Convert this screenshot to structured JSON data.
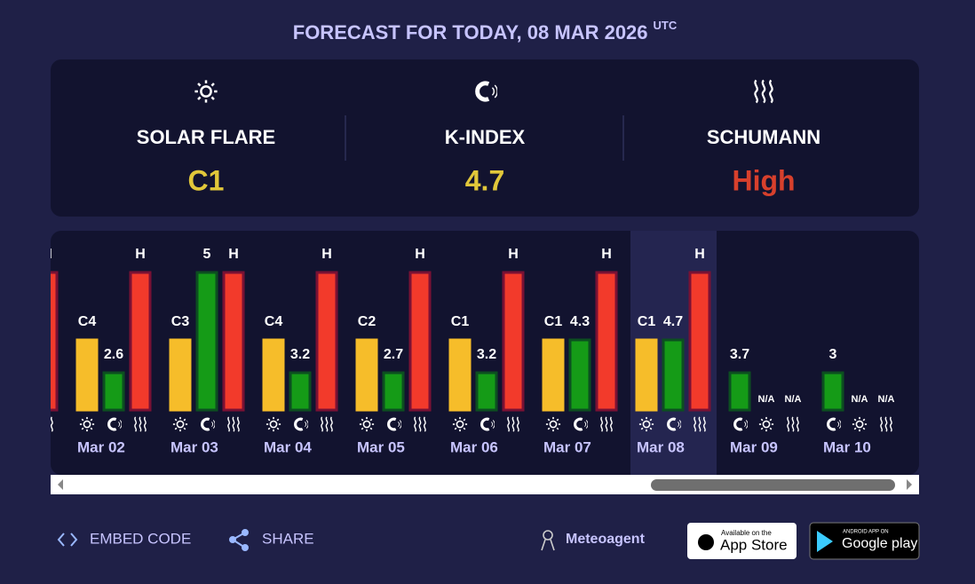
{
  "header": {
    "title": "FORECAST FOR TODAY, 08 MAR 2026",
    "title_suffix": "UTC"
  },
  "summary": [
    {
      "label": "SOLAR FLARE",
      "value": "C1"
    },
    {
      "label": "K-INDEX",
      "value": 4.7
    },
    {
      "label": "SCHUMANN",
      "value": "High"
    }
  ],
  "days": [
    {
      "schumann": "H"
    },
    {
      "date": "Mar 02",
      "flare": "C4",
      "k_index": 2.6,
      "schumann": "H"
    },
    {
      "date": "Mar 03",
      "flare": "C3",
      "k_index": 5,
      "schumann": "H"
    },
    {
      "date": "Mar 04",
      "flare": "C4",
      "k_index": 3.2,
      "schumann": "H"
    },
    {
      "date": "Mar 05",
      "flare": "C2",
      "k_index": 2.7,
      "schumann": "H"
    },
    {
      "date": "Mar 06",
      "flare": "C1",
      "k_index": 3.2,
      "schumann": "H"
    },
    {
      "date": "Mar 07",
      "flare": "C1",
      "k_index": 4.3,
      "schumann": "H"
    },
    {
      "date": "Mar 08",
      "flare": "C1",
      "k_index": 4.7,
      "schumann": "H"
    },
    {
      "date": "Mar 09",
      "flare": "N/A",
      "k_index": 3.7,
      "schumann": "N/A"
    },
    {
      "date": "Mar 10",
      "flare": "N/A",
      "k_index": 3,
      "schumann": "N/A"
    }
  ],
  "footer": {
    "embed": "EMBED CODE",
    "share": "SHARE",
    "brand": "Meteoagent",
    "app_store": {
      "small": "Available on the",
      "big": "App Store"
    },
    "google_play": {
      "small": "ANDROID APP ON",
      "big": "Google play"
    }
  }
}
